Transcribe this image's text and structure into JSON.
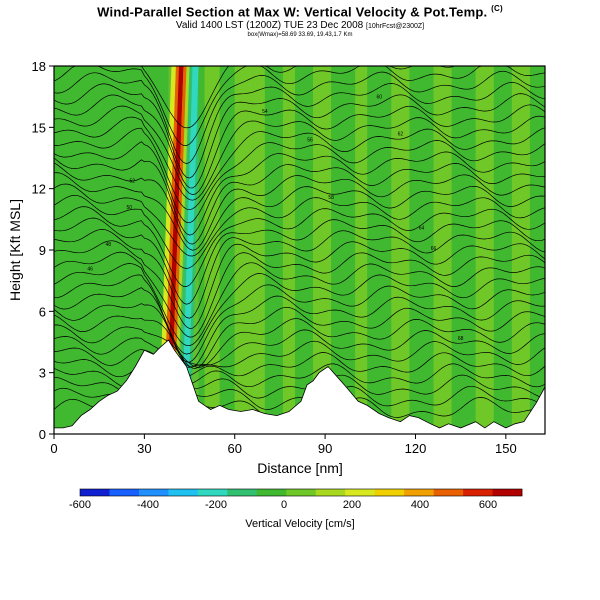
{
  "header": {
    "title": "Wind-Parallel Section at Max W: Vertical Velocity & Pot.Temp.",
    "title_mark": "(C)",
    "subtitle": "Valid 1400 LST (1200Z) TUE 23 Dec 2008",
    "subtitle_small": "[10hrFcst@2300Z]",
    "subsubtitle": "box(Wmax)=58.69  33.69, 19.43,1.7 Km"
  },
  "chart_data": {
    "type": "heatmap",
    "xlabel": "Distance [nm]",
    "ylabel": "Height [Kft MSL]",
    "xlim": [
      0,
      163
    ],
    "ylim": [
      0,
      18
    ],
    "x_ticks": [
      0,
      30,
      60,
      90,
      120,
      150
    ],
    "y_ticks": [
      0,
      3,
      6,
      9,
      12,
      15,
      18
    ],
    "colorbar": {
      "label": "Vertical Velocity [cm/s]",
      "min": -600,
      "max": 700,
      "ticks": [
        -600,
        -400,
        -200,
        0,
        200,
        400,
        600
      ],
      "colors": [
        "#1020d0",
        "#1860ff",
        "#2090ff",
        "#20c0f0",
        "#30d8c0",
        "#30c070",
        "#40b830",
        "#70c828",
        "#a8d820",
        "#d8e820",
        "#f0d000",
        "#f0a000",
        "#e86000",
        "#d82000",
        "#b00000"
      ]
    },
    "updraft_core": {
      "x": 41,
      "w_max": 700
    },
    "downdraft_core": {
      "x": 46,
      "w_min": -200
    },
    "terrain": [
      [
        0,
        0.3
      ],
      [
        3,
        0.3
      ],
      [
        6,
        0.4
      ],
      [
        9,
        0.9
      ],
      [
        12,
        1.2
      ],
      [
        15,
        1.6
      ],
      [
        18,
        1.9
      ],
      [
        21,
        2.1
      ],
      [
        24,
        2.6
      ],
      [
        27,
        3.3
      ],
      [
        30,
        4.1
      ],
      [
        33,
        3.9
      ],
      [
        35,
        4.2
      ],
      [
        38,
        4.6
      ],
      [
        40,
        4.1
      ],
      [
        44,
        3.3
      ],
      [
        48,
        1.6
      ],
      [
        52,
        1.2
      ],
      [
        55,
        1.4
      ],
      [
        58,
        1.2
      ],
      [
        62,
        1.1
      ],
      [
        66,
        1.2
      ],
      [
        70,
        1.0
      ],
      [
        74,
        0.9
      ],
      [
        78,
        1.1
      ],
      [
        82,
        1.6
      ],
      [
        84,
        2.4
      ],
      [
        86,
        2.6
      ],
      [
        88,
        3.0
      ],
      [
        91,
        3.3
      ],
      [
        94,
        2.8
      ],
      [
        97,
        2.3
      ],
      [
        101,
        1.6
      ],
      [
        104,
        1.4
      ],
      [
        108,
        1.0
      ],
      [
        111,
        0.8
      ],
      [
        115,
        0.6
      ],
      [
        118,
        0.9
      ],
      [
        121,
        0.8
      ],
      [
        125,
        0.5
      ],
      [
        128,
        0.3
      ],
      [
        131,
        0.5
      ],
      [
        135,
        0.3
      ],
      [
        140,
        0.6
      ],
      [
        143,
        0.3
      ],
      [
        146,
        0.6
      ],
      [
        150,
        0.3
      ],
      [
        153,
        0.5
      ],
      [
        156,
        0.6
      ],
      [
        160,
        1.5
      ],
      [
        163,
        2.3
      ]
    ],
    "theta_contour_labels": [
      "46",
      "48",
      "50",
      "52",
      "54",
      "56",
      "58",
      "60",
      "62",
      "64",
      "66",
      "68"
    ]
  }
}
